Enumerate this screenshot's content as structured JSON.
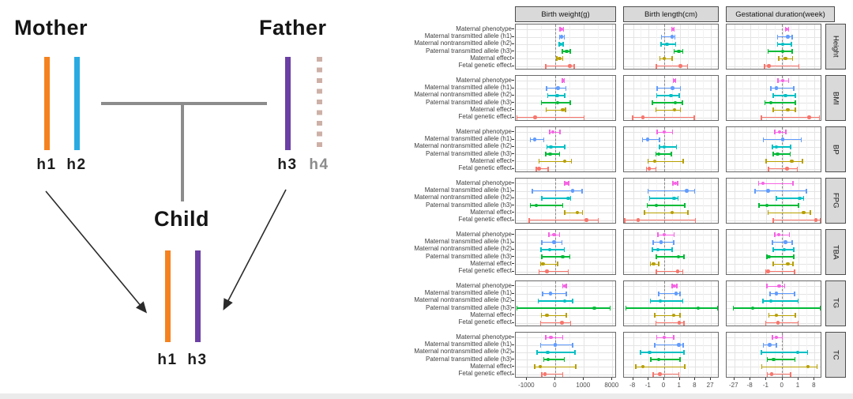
{
  "diagram": {
    "mother_label": "Mother",
    "father_label": "Father",
    "child_label": "Child",
    "haplotype_labels": {
      "m_h1": "h1",
      "m_h2": "h2",
      "f_h3": "h3",
      "f_h4": "h4",
      "c_h1": "h1",
      "c_h3": "h3"
    },
    "colors": {
      "h1": "#F5821F",
      "h2": "#29ABE2",
      "h3": "#6B3FA4",
      "h4": "#CDB0A7",
      "marriage_line": "#8C8C8C",
      "text": "#151515",
      "h4_label": "#8C8C8C",
      "arrow": "#2B2B2B"
    }
  },
  "chart_data": {
    "type": "forest_pointrange",
    "x_scale": "signed_cube_root",
    "columns": [
      "Birth weight(g)",
      "Birth length(cm)",
      "Gestational duration(week)"
    ],
    "row_facets": [
      "Height",
      "BMI",
      "BP",
      "FPG",
      "TBA",
      "TG",
      "TC"
    ],
    "categories": [
      "Maternal phenotype",
      "Maternal transmitted allele (h1)",
      "Maternal nontransmitted allele (h2)",
      "Paternal transmitted allele (h3)",
      "Maternal effect",
      "Fetal genetic effect"
    ],
    "series_colors": [
      "#F564E3",
      "#619CFF",
      "#00BFC4",
      "#00BA38",
      "#B79F00",
      "#F8766D"
    ],
    "zero_reference_line": 0,
    "axes": [
      {
        "column": "Birth weight(g)",
        "ticks": [
          -1000,
          0,
          1000,
          8000
        ]
      },
      {
        "column": "Birth length(cm)",
        "ticks": [
          -8,
          -1,
          0,
          1,
          8,
          27
        ]
      },
      {
        "column": "Gestational duration(week)",
        "ticks": [
          -27,
          -8,
          -1,
          0,
          1,
          8
        ]
      }
    ],
    "est_format": [
      "lo",
      "point",
      "hi"
    ],
    "panels": [
      {
        "row": "Height",
        "col": "Birth weight(g)",
        "est": [
          [
            4,
            10,
            22
          ],
          [
            3,
            11,
            29
          ],
          [
            2,
            7,
            19
          ],
          [
            14,
            63,
            147
          ],
          [
            0.1,
            3,
            16
          ],
          [
            -40,
            132,
            284
          ]
        ]
      },
      {
        "row": "Height",
        "col": "Birth length(cm)",
        "est": [
          [
            0.11,
            0.18,
            0.26
          ],
          [
            -0.005,
            0.13,
            0.31
          ],
          [
            -0.008,
            0.005,
            0.39
          ],
          [
            0.26,
            0.81,
            1.68
          ],
          [
            -0.02,
            0,
            0.13
          ],
          [
            -0.13,
            1.16,
            3.3
          ]
        ]
      },
      {
        "row": "Height",
        "col": "Gestational duration(week)",
        "est": [
          [
            0.006,
            0.02,
            0.055
          ],
          [
            -0.03,
            0.04,
            0.21
          ],
          [
            -0.03,
            0,
            0.16
          ],
          [
            -0.7,
            0,
            0.21
          ],
          [
            -0.012,
            0.006,
            0.26
          ],
          [
            -1.44,
            -0.59,
            1.09
          ]
        ]
      },
      {
        "row": "BMI",
        "col": "Birth weight(g)",
        "est": [
          [
            14,
            21,
            31
          ],
          [
            -29,
            0.6,
            51
          ],
          [
            -19,
            0.2,
            37
          ],
          [
            -125,
            0.4,
            140
          ],
          [
            -34,
            17,
            47
          ],
          [
            -2515,
            -362,
            1024
          ]
        ]
      },
      {
        "row": "BMI",
        "col": "Birth length(cm)",
        "est": [
          [
            0.19,
            0.27,
            0.4
          ],
          [
            -0.09,
            0.15,
            1.16
          ],
          [
            -0.11,
            0.08,
            0.89
          ],
          [
            -0.43,
            0.35,
            1.63
          ],
          [
            -0.15,
            0.27,
            1.16
          ],
          [
            -8.2,
            -2.6,
            7.2
          ]
        ]
      },
      {
        "row": "BMI",
        "col": "Gestational duration(week)",
        "est": [
          [
            -0.02,
            0,
            0.06
          ],
          [
            -0.37,
            -0.06,
            0.37
          ],
          [
            -0.18,
            0.006,
            0.51
          ],
          [
            -1.33,
            -0.37,
            0.51
          ],
          [
            -0.18,
            0.04,
            0.51
          ],
          [
            -2.35,
            4.6,
            12.3
          ]
        ]
      },
      {
        "row": "BP",
        "col": "Birth weight(g)",
        "est": [
          [
            -8.5,
            -0.6,
            4.6
          ],
          [
            -681,
            -391,
            -67
          ],
          [
            -26,
            -3.9,
            34
          ],
          [
            -40,
            -7.3,
            2.7
          ],
          [
            -189,
            34,
            180
          ],
          [
            -297,
            -189,
            -16
          ]
        ]
      },
      {
        "row": "BP",
        "col": "Birth length(cm)",
        "est": [
          [
            -0.09,
            0,
            0.15
          ],
          [
            -2.74,
            -1.16,
            -0.03
          ],
          [
            -0.03,
            0,
            0.49
          ],
          [
            -0.15,
            -0.04,
            0.09
          ],
          [
            -1.16,
            -0.23,
            1.86
          ],
          [
            -1.48,
            -0.88,
            -0.15
          ]
        ]
      },
      {
        "row": "BP",
        "col": "Gestational duration(week)",
        "est": [
          [
            -0.1,
            -0.006,
            0.008
          ],
          [
            -1.73,
            0,
            1.64
          ],
          [
            -0.24,
            -0.055,
            0.14
          ],
          [
            -0.19,
            -0.027,
            0.11
          ],
          [
            -1.09,
            0.19,
            2.0
          ],
          [
            -0.66,
            0.022,
            0.81
          ]
        ]
      },
      {
        "row": "FPG",
        "col": "Birth weight(g)",
        "est": [
          [
            37,
            63,
            99
          ],
          [
            -524,
            218,
            818
          ],
          [
            -111,
            88,
            155
          ],
          [
            -681,
            -296,
            17
          ],
          [
            37,
            455,
            868
          ],
          [
            -771,
            1295,
            3443
          ]
        ]
      },
      {
        "row": "FPG",
        "col": "Birth length(cm)",
        "est": [
          [
            0.18,
            0.36,
            0.61
          ],
          [
            -1.16,
            3.0,
            7.4
          ],
          [
            -0.81,
            0.26,
            0.68
          ],
          [
            -1.33,
            -0.13,
            2.3
          ],
          [
            -2.05,
            0.13,
            3.58
          ],
          [
            -16.4,
            -4.8,
            8.0
          ]
        ]
      },
      {
        "row": "FPG",
        "col": "Gestational duration(week)",
        "est": [
          [
            -3.3,
            -1.8,
            0.3
          ],
          [
            -4.9,
            -0.7,
            3.3
          ],
          [
            -0.06,
            1.26,
            2.35
          ],
          [
            -3.1,
            -0.91,
            1.0
          ],
          [
            -0.7,
            2.35,
            5.3
          ],
          [
            -0.18,
            8.9,
            14.0
          ]
        ]
      },
      {
        "row": "TBA",
        "col": "Birth weight(g)",
        "est": [
          [
            -11,
            -0.1,
            2.7
          ],
          [
            -111,
            -0.1,
            12
          ],
          [
            -132,
            -8.5,
            29
          ],
          [
            -111,
            17,
            132
          ],
          [
            -147,
            -82,
            0.4
          ],
          [
            -189,
            -26,
            88
          ]
        ]
      },
      {
        "row": "TBA",
        "col": "Birth length(cm)",
        "est": [
          [
            -0.07,
            0,
            0.26
          ],
          [
            -0.36,
            -0.008,
            0.21
          ],
          [
            -0.44,
            -0.07,
            0.13
          ],
          [
            -0.13,
            0.8,
            2.05
          ],
          [
            -0.68,
            -0.31,
            -0.05
          ],
          [
            -0.13,
            0.61,
            1.69
          ]
        ]
      },
      {
        "row": "TBA",
        "col": "Gestational duration(week)",
        "est": [
          [
            -0.11,
            -0.012,
            0.08
          ],
          [
            -0.23,
            0.006,
            0.21
          ],
          [
            -0.18,
            0.001,
            0.35
          ],
          [
            -0.91,
            -0.59,
            0.35
          ],
          [
            -0.18,
            0.04,
            0.3
          ],
          [
            -1.16,
            -0.7,
            0.43
          ]
        ]
      },
      {
        "row": "TG",
        "col": "Birth weight(g)",
        "est": [
          [
            17,
            34,
            55
          ],
          [
            -93,
            -5.5,
            55
          ],
          [
            -218,
            34,
            218
          ],
          [
            -2515,
            2571,
            7145
          ],
          [
            -125,
            -26,
            55
          ],
          [
            -147,
            12,
            155
          ]
        ]
      },
      {
        "row": "TG",
        "col": "Birth length(cm)",
        "est": [
          [
            0.13,
            0.26,
            0.51
          ],
          [
            -0.05,
            0.44,
            1.06
          ],
          [
            -0.68,
            -0.016,
            1.68
          ],
          [
            -14.9,
            10.6,
            40
          ],
          [
            -0.21,
            0.21,
            1.06
          ],
          [
            -0.16,
            0.94,
            2.05
          ]
        ]
      },
      {
        "row": "TG",
        "col": "Gestational duration(week)",
        "est": [
          [
            -0.9,
            -0.01,
            0.003
          ],
          [
            -0.46,
            -0.06,
            0.43
          ],
          [
            -1.78,
            -0.37,
            0.91
          ],
          [
            -28.9,
            -6.5,
            18.4
          ],
          [
            -0.59,
            -0.06,
            0.51
          ],
          [
            -1.16,
            -0.02,
            0.91
          ]
        ]
      },
      {
        "row": "TC",
        "col": "Birth weight(g)",
        "est": [
          [
            -40,
            -3.9,
            17
          ],
          [
            -147,
            0,
            218
          ],
          [
            -261,
            -21,
            334
          ],
          [
            -72,
            -15.6,
            29
          ],
          [
            -391,
            -147,
            376
          ],
          [
            -111,
            -47,
            17
          ]
        ]
      },
      {
        "row": "TC",
        "col": "Birth length(cm)",
        "est": [
          [
            -0.11,
            0,
            0.21
          ],
          [
            -0.21,
            0.81,
            1.8
          ],
          [
            -3.6,
            -0.81,
            2.05
          ],
          [
            -0.61,
            -0.05,
            1.06
          ],
          [
            -6.1,
            -2.5,
            2.3
          ],
          [
            -0.36,
            -0.02,
            0.81
          ]
        ]
      },
      {
        "row": "TC",
        "col": "Gestational duration(week)",
        "est": [
          [
            -0.24,
            -0.05,
            0.0
          ],
          [
            -1.7,
            -0.49,
            -0.05
          ],
          [
            -2.35,
            0.82,
            3.8
          ],
          [
            -0.86,
            -0.16,
            0.46
          ],
          [
            -2.1,
            4.0,
            10.1
          ],
          [
            -0.86,
            -0.3,
            0.14
          ]
        ]
      }
    ],
    "chrome": {
      "strip_bg": "#D9D9D9",
      "strip_border": "#4D4D4D",
      "panel_border": "#6A6A6A",
      "grid_major": "#E4E4E4",
      "grid_minor": "#F2F2F2",
      "zero_line": "#8A8A8A",
      "axis_text": "#4D4D4D"
    }
  }
}
